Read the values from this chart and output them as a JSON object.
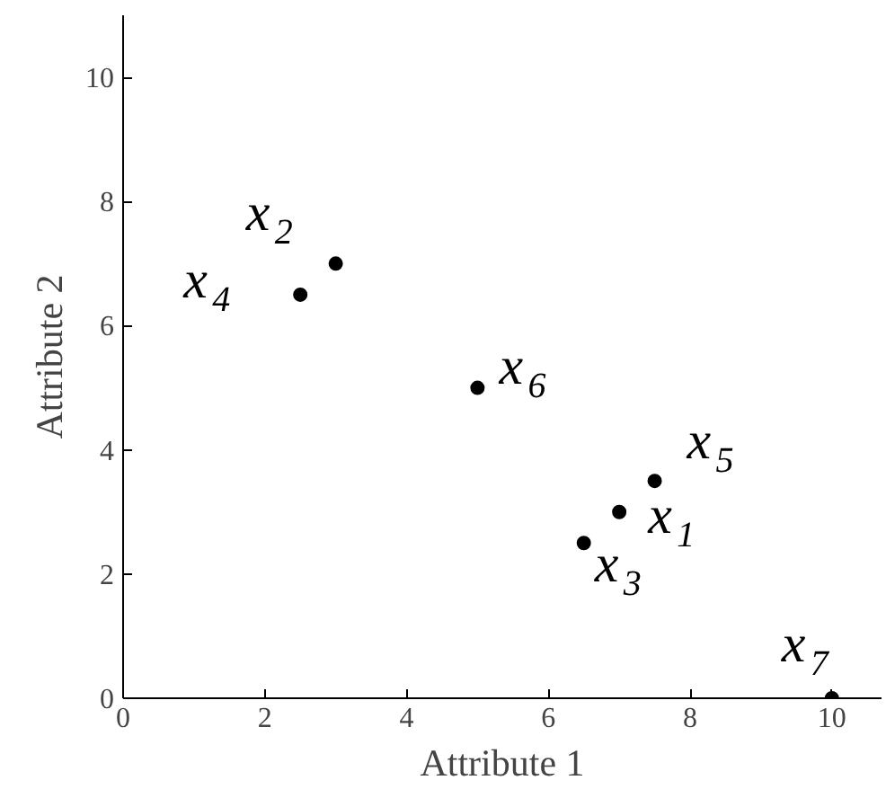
{
  "chart_data": {
    "type": "scatter",
    "xlabel": "Attribute 1",
    "ylabel": "Attribute 2",
    "x": [
      7,
      3,
      6.5,
      2.5,
      7.5,
      5,
      10
    ],
    "values": [
      3,
      7,
      2.5,
      6.5,
      3.5,
      5,
      0
    ],
    "color": "#000000",
    "marker": "circle",
    "grid": false,
    "xlim": [
      0,
      10.7
    ],
    "ylim": [
      0,
      11
    ],
    "xticks": [
      0,
      2,
      4,
      6,
      8,
      10
    ],
    "yticks": [
      0,
      2,
      4,
      6,
      8,
      10
    ],
    "annotations": [
      {
        "text": "x$_{1}$",
        "x": 7,
        "y": 3
      },
      {
        "text": "x$_{2}$",
        "x": 3,
        "y": 7
      },
      {
        "text": "x$_{3}$",
        "x": 6.5,
        "y": 2.5
      },
      {
        "text": "x$_{4}$",
        "x": 2.5,
        "y": 6.5
      },
      {
        "text": "x$_{5}$",
        "x": 7.5,
        "y": 3.5
      },
      {
        "text": "x$_{6}$",
        "x": 5,
        "y": 5
      },
      {
        "text": "x$_{7}$",
        "x": 10,
        "y": 0
      }
    ]
  }
}
